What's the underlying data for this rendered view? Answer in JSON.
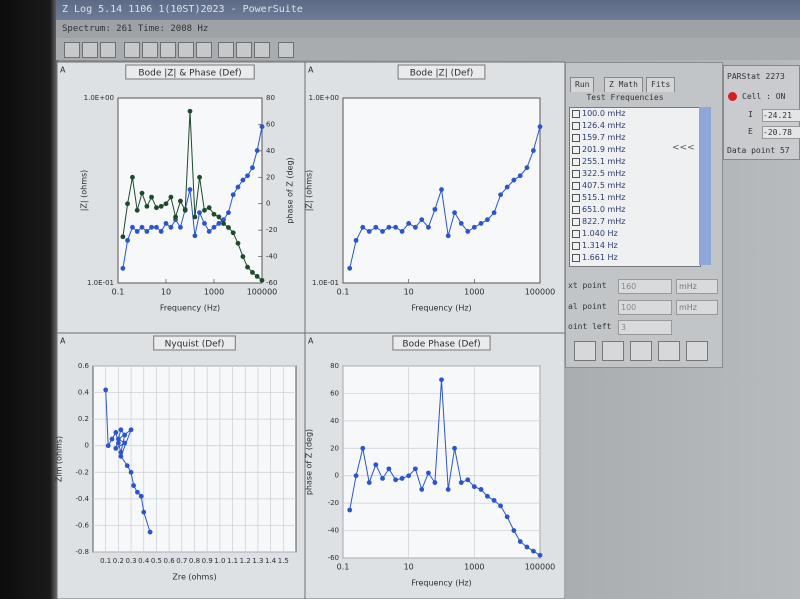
{
  "window": {
    "title": "Z Log 5.14 1106 1(10ST)2023 - PowerSuite",
    "status_bar": "Spectrum: 261  Time: 2008 Hz"
  },
  "side_panel": {
    "tabs": [
      "Run",
      "Z Math",
      "Fits"
    ],
    "list_title": "Test Frequencies",
    "frequencies": [
      "100.0 mHz",
      "126.4 mHz",
      "159.7 mHz",
      "201.9 mHz",
      "255.1 mHz",
      "322.5 mHz",
      "407.5 mHz",
      "515.1 mHz",
      "651.0 mHz",
      "822.7 mHz",
      "1.040 Hz",
      "1.314 Hz",
      "1.661 Hz"
    ],
    "collapse": "<<<",
    "fields": [
      {
        "label": "xt point",
        "value": "160",
        "unit": "mHz"
      },
      {
        "label": "al point",
        "value": "100",
        "unit": "mHz"
      },
      {
        "label": "oint left",
        "value": "3"
      }
    ]
  },
  "status_panel": {
    "title": "PARStat 2273",
    "cell": "Cell : ON",
    "rows": [
      {
        "label": "I",
        "value": "-24.21"
      },
      {
        "label": "E",
        "value": "-20.78"
      }
    ],
    "data_point": "Data point 57"
  },
  "chart_data": [
    {
      "type": "line",
      "title": "Bode |Z| & Phase (Def)",
      "corner_label": "A",
      "xlabel": "Frequency (Hz)",
      "ylabel": "|Z| (ohms)",
      "y2label": "phase of Z (deg)",
      "xlog": true,
      "ylog": true,
      "grid": false,
      "x": [
        0.16,
        0.25,
        0.4,
        0.63,
        1,
        1.6,
        2.5,
        4,
        6.3,
        10,
        16,
        25,
        40,
        63,
        100,
        160,
        250,
        400,
        630,
        1000,
        1600,
        2500,
        4000,
        6300,
        10000,
        16000,
        25000,
        40000,
        63000,
        100000
      ],
      "series": [
        {
          "color": "#2b56c9",
          "values": [
            0.12,
            0.17,
            0.2,
            0.19,
            0.2,
            0.19,
            0.2,
            0.2,
            0.19,
            0.21,
            0.2,
            0.22,
            0.2,
            0.25,
            0.32,
            0.18,
            0.24,
            0.21,
            0.19,
            0.2,
            0.21,
            0.22,
            0.24,
            0.3,
            0.33,
            0.36,
            0.38,
            0.42,
            0.52,
            0.7
          ]
        },
        {
          "color": "#1e4a2c",
          "axis": "y2",
          "values": [
            -25,
            0,
            20,
            -5,
            8,
            -2,
            5,
            -3,
            -2,
            0,
            5,
            -10,
            2,
            -5,
            70,
            -10,
            20,
            -5,
            -3,
            -8,
            -10,
            -15,
            -18,
            -22,
            -30,
            -40,
            -48,
            -52,
            -55,
            -58
          ]
        }
      ],
      "xlim": [
        0.1,
        100000
      ],
      "xticks": [
        0.1,
        10,
        1000,
        100000
      ],
      "ylim": [
        0.1,
        1
      ],
      "yticks": [
        {
          "value": 0.1,
          "label": "1.0E-01"
        },
        {
          "value": 1,
          "label": "1.0E+00"
        }
      ],
      "y2lim": [
        -60,
        80
      ],
      "y2ticks": [
        -60,
        -40,
        -20,
        0,
        20,
        40,
        60,
        80
      ]
    },
    {
      "type": "line",
      "title": "Bode |Z| (Def)",
      "corner_label": "A",
      "xlabel": "Frequency (Hz)",
      "ylabel": "|Z| (ohms)",
      "xlog": true,
      "ylog": true,
      "grid": false,
      "x": [
        0.16,
        0.25,
        0.4,
        0.63,
        1,
        1.6,
        2.5,
        4,
        6.3,
        10,
        16,
        25,
        40,
        63,
        100,
        160,
        250,
        400,
        630,
        1000,
        1600,
        2500,
        4000,
        6300,
        10000,
        16000,
        25000,
        40000,
        63000,
        100000
      ],
      "series": [
        {
          "color": "#2b56c9",
          "values": [
            0.12,
            0.17,
            0.2,
            0.19,
            0.2,
            0.19,
            0.2,
            0.2,
            0.19,
            0.21,
            0.2,
            0.22,
            0.2,
            0.25,
            0.32,
            0.18,
            0.24,
            0.21,
            0.19,
            0.2,
            0.21,
            0.22,
            0.24,
            0.3,
            0.33,
            0.36,
            0.38,
            0.42,
            0.52,
            0.7
          ]
        }
      ],
      "xlim": [
        0.1,
        100000
      ],
      "xticks": [
        0.1,
        10,
        1000,
        100000
      ],
      "ylim": [
        0.1,
        1
      ],
      "yticks": [
        {
          "value": 0.1,
          "label": "1.0E-01"
        },
        {
          "value": 1,
          "label": "1.0E+00"
        }
      ]
    },
    {
      "type": "line",
      "title": "Nyquist (Def)",
      "corner_label": "A",
      "xlabel": "Zre (ohms)",
      "ylabel": "Zim (ohms)",
      "xlog": false,
      "ylog": false,
      "grid": true,
      "x": [
        0.1,
        0.12,
        0.15,
        0.18,
        0.2,
        0.22,
        0.25,
        0.22,
        0.18,
        0.25,
        0.2,
        0.3,
        0.22,
        0.27,
        0.3,
        0.32,
        0.35,
        0.38,
        0.4,
        0.45
      ],
      "series": [
        {
          "color": "#2b56c9",
          "values": [
            0.42,
            0.0,
            0.05,
            0.1,
            0.02,
            -0.05,
            0.08,
            0.12,
            -0.02,
            0.02,
            0.05,
            0.12,
            -0.08,
            -0.15,
            -0.2,
            -0.3,
            -0.35,
            -0.38,
            -0.5,
            -0.65
          ]
        }
      ],
      "xlim": [
        0,
        1.6
      ],
      "xticks": [
        0.1,
        0.2,
        0.3,
        0.4,
        0.5,
        0.6,
        0.7,
        0.8,
        0.9,
        {
          "value": 1,
          "label": "1.0"
        },
        1.1,
        1.2,
        1.3,
        1.4,
        1.5
      ],
      "ylim": [
        -0.8,
        0.6
      ],
      "yticks": [
        -0.8,
        -0.6,
        -0.4,
        -0.2,
        0,
        0.2,
        0.4,
        0.6
      ]
    },
    {
      "type": "line",
      "title": "Bode Phase (Def)",
      "corner_label": "A",
      "xlabel": "Frequency (Hz)",
      "ylabel": "phase of Z (deg)",
      "xlog": true,
      "ylog": false,
      "grid": true,
      "x": [
        0.16,
        0.25,
        0.4,
        0.63,
        1,
        1.6,
        2.5,
        4,
        6.3,
        10,
        16,
        25,
        40,
        63,
        100,
        160,
        250,
        400,
        630,
        1000,
        1600,
        2500,
        4000,
        6300,
        10000,
        16000,
        25000,
        40000,
        63000,
        100000
      ],
      "series": [
        {
          "color": "#2b56c9",
          "values": [
            -25,
            0,
            20,
            -5,
            8,
            -2,
            5,
            -3,
            -2,
            0,
            5,
            -10,
            2,
            -5,
            70,
            -10,
            20,
            -5,
            -3,
            -8,
            -10,
            -15,
            -18,
            -22,
            -30,
            -40,
            -48,
            -52,
            -55,
            -58
          ]
        }
      ],
      "xlim": [
        0.1,
        100000
      ],
      "xticks": [
        0.1,
        10,
        1000,
        100000
      ],
      "ylim": [
        -60,
        80
      ],
      "yticks": [
        -60,
        -40,
        -20,
        0,
        20,
        40,
        60,
        80
      ]
    }
  ]
}
